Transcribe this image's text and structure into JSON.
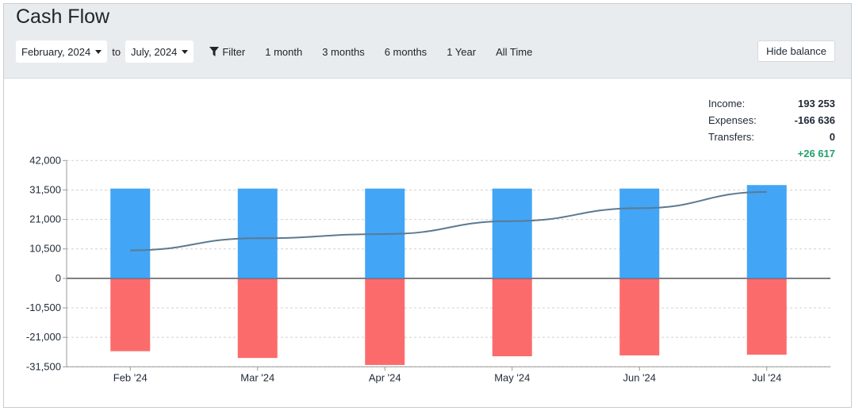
{
  "header": {
    "title": "Cash Flow",
    "from": "February, 2024",
    "to_label": "to",
    "to": "July, 2024",
    "filter": "Filter",
    "ranges": [
      "1 month",
      "3 months",
      "6 months",
      "1 Year",
      "All Time"
    ],
    "hide_balance": "Hide balance"
  },
  "summary": {
    "income_label": "Income:",
    "income": "193 253",
    "expenses_label": "Expenses:",
    "expenses": "-166 636",
    "transfers_label": "Transfers:",
    "transfers": "0",
    "net": "+26 617"
  },
  "colors": {
    "income": "#42a5f5",
    "expenses": "#fc6b6b",
    "balance": "#5c7a92",
    "net": "#22a06b"
  },
  "chart_data": {
    "type": "bar",
    "categories": [
      "Feb '24",
      "Mar '24",
      "Apr '24",
      "May '24",
      "Jun '24",
      "Jul '24"
    ],
    "series": [
      {
        "values": [
          32000,
          32000,
          32000,
          32000,
          32000,
          33253
        ]
      },
      {
        "values": [
          -25800,
          -28200,
          -30700,
          -27600,
          -27300,
          -27036
        ]
      },
      {
        "type": "line",
        "values": [
          10000,
          14300,
          15800,
          20400,
          25000,
          30800
        ]
      }
    ],
    "yticks": [
      42000,
      31500,
      21000,
      10500,
      0,
      -10500,
      -21000,
      -31500
    ],
    "ytick_labels": [
      "42,000",
      "31,500",
      "21,000",
      "10,500",
      "0",
      "-10,500",
      "-21,000",
      "-31,500"
    ],
    "ylim": [
      -31500,
      42000
    ],
    "grid": true
  }
}
